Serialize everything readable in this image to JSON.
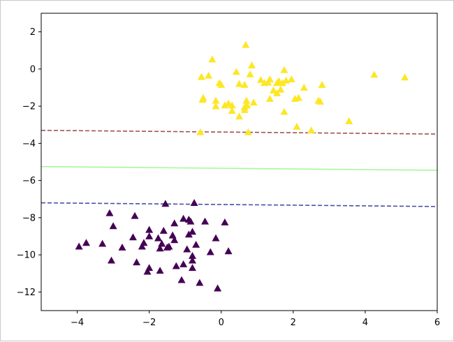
{
  "chart_data": {
    "type": "scatter",
    "title": "",
    "xlabel": "",
    "ylabel": "",
    "xlim": [
      -5,
      6
    ],
    "ylim": [
      -13,
      3
    ],
    "x_ticks": [
      -4,
      -2,
      0,
      2,
      4,
      6
    ],
    "y_ticks": [
      2,
      0,
      -2,
      -4,
      -6,
      -8,
      -10,
      -12
    ],
    "x_tick_labels": [
      "−4",
      "−2",
      "0",
      "2",
      "4",
      "6"
    ],
    "y_tick_labels": [
      "2",
      "0",
      "−2",
      "−4",
      "−6",
      "−8",
      "−10",
      "−12"
    ],
    "grid": false,
    "marker": "triangle",
    "series": [
      {
        "color": "#fde725",
        "points": [
          [
            0.68,
            1.3
          ],
          [
            -0.25,
            0.52
          ],
          [
            -0.35,
            -0.35
          ],
          [
            -0.55,
            -0.42
          ],
          [
            0.42,
            -0.15
          ],
          [
            0.85,
            0.2
          ],
          [
            0.8,
            -0.28
          ],
          [
            1.75,
            -0.05
          ],
          [
            -0.05,
            -0.75
          ],
          [
            0.0,
            -0.85
          ],
          [
            0.5,
            -0.8
          ],
          [
            0.65,
            -0.85
          ],
          [
            1.1,
            -0.58
          ],
          [
            1.2,
            -0.75
          ],
          [
            1.3,
            -0.72
          ],
          [
            1.35,
            -0.55
          ],
          [
            1.55,
            -0.75
          ],
          [
            1.6,
            -0.65
          ],
          [
            1.7,
            -0.75
          ],
          [
            1.8,
            -0.62
          ],
          [
            1.95,
            -0.55
          ],
          [
            1.45,
            -1.15
          ],
          [
            1.55,
            -1.3
          ],
          [
            1.65,
            -1.1
          ],
          [
            2.3,
            -1.0
          ],
          [
            2.8,
            -0.85
          ],
          [
            4.25,
            -0.3
          ],
          [
            5.1,
            -0.45
          ],
          [
            -0.5,
            -1.55
          ],
          [
            -0.52,
            -1.65
          ],
          [
            -0.15,
            -1.7
          ],
          [
            0.7,
            -1.7
          ],
          [
            0.9,
            -1.8
          ],
          [
            0.2,
            -1.85
          ],
          [
            0.1,
            -1.95
          ],
          [
            0.3,
            -1.95
          ],
          [
            0.72,
            -1.95
          ],
          [
            0.65,
            -2.05
          ],
          [
            -0.15,
            -2.0
          ],
          [
            0.3,
            -2.25
          ],
          [
            0.65,
            -2.2
          ],
          [
            0.5,
            -2.55
          ],
          [
            1.35,
            -1.6
          ],
          [
            2.05,
            -1.6
          ],
          [
            2.15,
            -1.55
          ],
          [
            2.7,
            -1.7
          ],
          [
            2.75,
            -1.75
          ],
          [
            1.75,
            -2.3
          ],
          [
            3.55,
            -2.8
          ],
          [
            2.1,
            -3.1
          ],
          [
            2.5,
            -3.3
          ],
          [
            -0.58,
            -3.4
          ],
          [
            0.75,
            -3.4
          ]
        ]
      },
      {
        "color": "#440154",
        "points": [
          [
            -1.55,
            -7.25
          ],
          [
            -0.75,
            -7.2
          ],
          [
            -3.1,
            -7.75
          ],
          [
            -2.4,
            -7.9
          ],
          [
            -1.05,
            -8.05
          ],
          [
            -0.9,
            -8.1
          ],
          [
            -0.85,
            -8.2
          ],
          [
            -0.45,
            -8.2
          ],
          [
            0.1,
            -8.25
          ],
          [
            -3.0,
            -8.45
          ],
          [
            -1.3,
            -8.3
          ],
          [
            -2.0,
            -8.65
          ],
          [
            -1.6,
            -8.7
          ],
          [
            -0.8,
            -8.75
          ],
          [
            -0.9,
            -8.9
          ],
          [
            -1.35,
            -8.95
          ],
          [
            -2.45,
            -9.05
          ],
          [
            -2.0,
            -9.0
          ],
          [
            -1.75,
            -9.1
          ],
          [
            -1.3,
            -9.2
          ],
          [
            -0.15,
            -9.1
          ],
          [
            -2.15,
            -9.35
          ],
          [
            -1.65,
            -9.4
          ],
          [
            -0.7,
            -9.45
          ],
          [
            -3.3,
            -9.4
          ],
          [
            -3.75,
            -9.35
          ],
          [
            -3.95,
            -9.55
          ],
          [
            -2.75,
            -9.6
          ],
          [
            -2.2,
            -9.55
          ],
          [
            -1.7,
            -9.65
          ],
          [
            -1.5,
            -9.6
          ],
          [
            -1.45,
            -9.55
          ],
          [
            -0.95,
            -9.7
          ],
          [
            -0.3,
            -9.85
          ],
          [
            0.2,
            -9.8
          ],
          [
            -0.8,
            -10.05
          ],
          [
            -0.8,
            -10.3
          ],
          [
            -3.05,
            -10.3
          ],
          [
            -2.35,
            -10.4
          ],
          [
            -1.25,
            -10.6
          ],
          [
            -1.05,
            -10.5
          ],
          [
            -0.8,
            -10.7
          ],
          [
            -2.0,
            -10.7
          ],
          [
            -1.7,
            -10.85
          ],
          [
            -2.05,
            -10.9
          ],
          [
            -1.1,
            -11.35
          ],
          [
            -0.6,
            -11.5
          ],
          [
            -0.1,
            -11.8
          ]
        ]
      }
    ],
    "lines": [
      {
        "style": "dashed",
        "color": "#a0524f",
        "x": [
          -5,
          6
        ],
        "y": [
          -3.3,
          -3.5
        ]
      },
      {
        "style": "solid",
        "color": "#a6f79a",
        "x": [
          -5,
          6
        ],
        "y": [
          -5.25,
          -5.45
        ]
      },
      {
        "style": "dashed",
        "color": "#4b4ea6",
        "x": [
          -5,
          6
        ],
        "y": [
          -7.2,
          -7.4
        ]
      }
    ]
  }
}
